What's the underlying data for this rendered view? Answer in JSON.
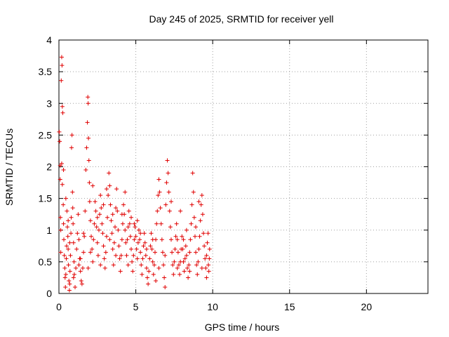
{
  "chart_data": {
    "type": "scatter",
    "title": "Day 245 of 2025, SRMTID for receiver yell",
    "xlabel": "GPS time / hours",
    "ylabel": "SRMTID / TECUs",
    "xlim": [
      0,
      24
    ],
    "ylim": [
      0,
      4
    ],
    "xticks": [
      0,
      5,
      10,
      15,
      20
    ],
    "yticks": [
      0,
      0.5,
      1,
      1.5,
      2,
      2.5,
      3,
      3.5,
      4
    ],
    "grid": true,
    "marker": "+",
    "marker_color": "#e00000",
    "series": [
      {
        "name": "SRMTID",
        "points": [
          [
            0.02,
            2.55
          ],
          [
            0.05,
            2.4
          ],
          [
            0.08,
            2.02
          ],
          [
            0.1,
            1.2
          ],
          [
            0.12,
            0.65
          ],
          [
            0.15,
            3.36
          ],
          [
            0.18,
            3.73
          ],
          [
            0.2,
            3.6
          ],
          [
            0.22,
            2.95
          ],
          [
            0.25,
            2.85
          ],
          [
            0.08,
            1.8
          ],
          [
            0.12,
            1.0
          ],
          [
            0.18,
            2.05
          ],
          [
            0.22,
            1.72
          ],
          [
            0.28,
            1.4
          ],
          [
            0.3,
            1.1
          ],
          [
            0.32,
            0.85
          ],
          [
            0.35,
            0.6
          ],
          [
            0.38,
            0.4
          ],
          [
            0.4,
            0.25
          ],
          [
            0.42,
            0.1
          ],
          [
            0.45,
            0.3
          ],
          [
            0.48,
            0.55
          ],
          [
            0.5,
            0.75
          ],
          [
            0.52,
            1.3
          ],
          [
            0.55,
            1.05
          ],
          [
            0.58,
            0.9
          ],
          [
            0.6,
            0.7
          ],
          [
            0.62,
            0.45
          ],
          [
            0.65,
            0.2
          ],
          [
            0.68,
            0.05
          ],
          [
            0.7,
            0.15
          ],
          [
            0.72,
            0.35
          ],
          [
            0.75,
            0.6
          ],
          [
            0.78,
            0.95
          ],
          [
            0.8,
            1.2
          ],
          [
            0.82,
            2.3
          ],
          [
            0.85,
            2.5
          ],
          [
            0.88,
            1.6
          ],
          [
            0.9,
            1.35
          ],
          [
            0.92,
            1.1
          ],
          [
            0.95,
            0.8
          ],
          [
            0.98,
            0.5
          ],
          [
            1.0,
            0.3
          ],
          [
            1.05,
            0.1
          ],
          [
            1.1,
            0.4
          ],
          [
            1.15,
            0.7
          ],
          [
            1.2,
            0.95
          ],
          [
            1.25,
            1.25
          ],
          [
            1.3,
            0.85
          ],
          [
            1.35,
            0.55
          ],
          [
            1.4,
            0.35
          ],
          [
            1.45,
            0.2
          ],
          [
            1.5,
            0.15
          ],
          [
            1.55,
            0.4
          ],
          [
            1.6,
            0.65
          ],
          [
            1.65,
            0.9
          ],
          [
            1.7,
            1.3
          ],
          [
            1.75,
            1.95
          ],
          [
            1.8,
            2.3
          ],
          [
            1.85,
            2.7
          ],
          [
            1.88,
            3.1
          ],
          [
            1.9,
            3.0
          ],
          [
            1.92,
            2.45
          ],
          [
            1.95,
            2.1
          ],
          [
            1.98,
            1.75
          ],
          [
            2.0,
            1.45
          ],
          [
            2.05,
            1.15
          ],
          [
            2.1,
            0.9
          ],
          [
            2.15,
            0.7
          ],
          [
            2.2,
            0.5
          ],
          [
            2.25,
            0.85
          ],
          [
            2.3,
            1.1
          ],
          [
            2.35,
            1.45
          ],
          [
            2.4,
            1.3
          ],
          [
            2.45,
            1.05
          ],
          [
            2.5,
            0.8
          ],
          [
            2.55,
            0.6
          ],
          [
            2.6,
            1.0
          ],
          [
            2.65,
            1.25
          ],
          [
            2.7,
            1.55
          ],
          [
            2.75,
            1.35
          ],
          [
            2.8,
            1.1
          ],
          [
            2.85,
            0.95
          ],
          [
            2.9,
            0.75
          ],
          [
            2.95,
            0.55
          ],
          [
            3.0,
            0.4
          ],
          [
            3.05,
            0.65
          ],
          [
            3.1,
            0.9
          ],
          [
            3.15,
            1.2
          ],
          [
            3.2,
            1.55
          ],
          [
            3.25,
            1.9
          ],
          [
            3.3,
            1.7
          ],
          [
            3.35,
            1.4
          ],
          [
            3.4,
            1.15
          ],
          [
            3.45,
            0.95
          ],
          [
            3.5,
            0.7
          ],
          [
            3.55,
            0.45
          ],
          [
            3.6,
            0.8
          ],
          [
            3.65,
            1.05
          ],
          [
            3.7,
            1.35
          ],
          [
            3.75,
            1.65
          ],
          [
            3.8,
            1.3
          ],
          [
            3.85,
            1.0
          ],
          [
            3.9,
            0.75
          ],
          [
            3.95,
            0.55
          ],
          [
            4.0,
            0.35
          ],
          [
            4.05,
            0.6
          ],
          [
            4.1,
            0.85
          ],
          [
            4.15,
            1.1
          ],
          [
            4.2,
            1.4
          ],
          [
            4.25,
            1.25
          ],
          [
            4.3,
            1.0
          ],
          [
            4.35,
            0.8
          ],
          [
            4.4,
            0.6
          ],
          [
            4.45,
            0.85
          ],
          [
            4.5,
            1.05
          ],
          [
            4.55,
            1.3
          ],
          [
            4.6,
            1.1
          ],
          [
            4.65,
            0.9
          ],
          [
            4.7,
            0.7
          ],
          [
            4.75,
            0.5
          ],
          [
            4.8,
            0.35
          ],
          [
            4.85,
            0.6
          ],
          [
            4.9,
            0.85
          ],
          [
            4.95,
            1.05
          ],
          [
            5.0,
            0.9
          ],
          [
            5.05,
            0.7
          ],
          [
            5.1,
            0.55
          ],
          [
            5.15,
            0.8
          ],
          [
            5.2,
            1.0
          ],
          [
            5.25,
            0.85
          ],
          [
            5.3,
            0.65
          ],
          [
            5.35,
            0.45
          ],
          [
            5.4,
            0.3
          ],
          [
            5.45,
            0.55
          ],
          [
            5.5,
            0.75
          ],
          [
            5.55,
            0.95
          ],
          [
            5.6,
            0.8
          ],
          [
            5.65,
            0.6
          ],
          [
            5.7,
            0.4
          ],
          [
            5.75,
            0.25
          ],
          [
            5.8,
            0.15
          ],
          [
            5.85,
            0.35
          ],
          [
            5.9,
            0.55
          ],
          [
            5.95,
            0.75
          ],
          [
            6.0,
            0.95
          ],
          [
            6.05,
            0.7
          ],
          [
            6.1,
            0.5
          ],
          [
            6.15,
            0.3
          ],
          [
            6.2,
            0.45
          ],
          [
            6.25,
            0.65
          ],
          [
            6.3,
            0.85
          ],
          [
            6.35,
            1.1
          ],
          [
            6.4,
            1.3
          ],
          [
            6.45,
            1.55
          ],
          [
            6.5,
            1.8
          ],
          [
            6.55,
            1.6
          ],
          [
            6.6,
            1.35
          ],
          [
            6.65,
            1.1
          ],
          [
            6.7,
            0.85
          ],
          [
            6.75,
            0.65
          ],
          [
            6.8,
            0.45
          ],
          [
            6.85,
            0.25
          ],
          [
            6.9,
            0.1
          ],
          [
            6.95,
            1.4
          ],
          [
            7.0,
            1.75
          ],
          [
            7.05,
            2.1
          ],
          [
            7.1,
            1.9
          ],
          [
            7.15,
            1.6
          ],
          [
            7.2,
            1.3
          ],
          [
            7.25,
            1.05
          ],
          [
            7.3,
            0.85
          ],
          [
            7.35,
            0.65
          ],
          [
            7.4,
            0.45
          ],
          [
            7.45,
            0.3
          ],
          [
            7.5,
            0.5
          ],
          [
            7.55,
            0.7
          ],
          [
            7.6,
            0.9
          ],
          [
            7.65,
            1.1
          ],
          [
            7.7,
            0.85
          ],
          [
            7.75,
            0.65
          ],
          [
            7.8,
            0.45
          ],
          [
            7.85,
            0.3
          ],
          [
            7.9,
            0.5
          ],
          [
            7.95,
            0.7
          ],
          [
            8.0,
            0.9
          ],
          [
            8.05,
            0.7
          ],
          [
            8.1,
            0.5
          ],
          [
            8.15,
            0.35
          ],
          [
            8.2,
            0.55
          ],
          [
            8.25,
            0.75
          ],
          [
            8.3,
            0.6
          ],
          [
            8.35,
            0.4
          ],
          [
            8.4,
            0.25
          ],
          [
            8.45,
            0.45
          ],
          [
            8.5,
            0.65
          ],
          [
            8.55,
            0.85
          ],
          [
            8.6,
            1.1
          ],
          [
            8.65,
            1.4
          ],
          [
            8.7,
            1.9
          ],
          [
            8.75,
            1.6
          ],
          [
            8.8,
            1.2
          ],
          [
            8.85,
            0.9
          ],
          [
            8.9,
            0.65
          ],
          [
            8.95,
            0.45
          ],
          [
            9.0,
            0.3
          ],
          [
            9.05,
            0.5
          ],
          [
            9.1,
            0.7
          ],
          [
            9.15,
            0.9
          ],
          [
            9.2,
            1.15
          ],
          [
            9.25,
            1.4
          ],
          [
            9.3,
            1.55
          ],
          [
            9.35,
            1.25
          ],
          [
            9.4,
            0.95
          ],
          [
            9.45,
            0.75
          ],
          [
            9.5,
            0.55
          ],
          [
            9.55,
            0.4
          ],
          [
            9.6,
            0.6
          ],
          [
            9.65,
            0.8
          ],
          [
            9.7,
            0.95
          ],
          [
            9.72,
            0.45
          ],
          [
            9.75,
            0.35
          ],
          [
            9.78,
            0.55
          ],
          [
            9.8,
            0.7
          ],
          [
            0.3,
            1.95
          ],
          [
            0.45,
            1.5
          ],
          [
            0.6,
            1.15
          ],
          [
            0.95,
            0.25
          ],
          [
            1.3,
            0.45
          ],
          [
            1.6,
            0.95
          ],
          [
            2.05,
            0.65
          ],
          [
            2.5,
            1.2
          ],
          [
            2.9,
            1.4
          ],
          [
            3.3,
            0.85
          ],
          [
            3.7,
            0.6
          ],
          [
            4.1,
            1.25
          ],
          [
            4.5,
            0.45
          ],
          [
            4.9,
            1.1
          ],
          [
            5.3,
            0.95
          ],
          [
            5.7,
            0.7
          ],
          [
            6.1,
            0.85
          ],
          [
            6.5,
            0.4
          ],
          [
            6.9,
            0.6
          ],
          [
            7.3,
            1.45
          ],
          [
            7.7,
            0.4
          ],
          [
            8.1,
            0.85
          ],
          [
            8.5,
            0.35
          ],
          [
            8.9,
            1.05
          ],
          [
            9.3,
            0.4
          ],
          [
            9.6,
            0.25
          ],
          [
            2.2,
            1.7
          ],
          [
            3.1,
            1.65
          ],
          [
            4.3,
            1.6
          ],
          [
            5.1,
            1.15
          ],
          [
            6.3,
            0.2
          ],
          [
            7.9,
            1.3
          ],
          [
            8.3,
            1.0
          ],
          [
            9.1,
            1.45
          ],
          [
            1.4,
            0.55
          ],
          [
            0.7,
            0.8
          ],
          [
            1.9,
            0.4
          ],
          [
            2.7,
            0.45
          ],
          [
            3.5,
            1.25
          ],
          [
            4.7,
            1.2
          ]
        ]
      }
    ]
  }
}
